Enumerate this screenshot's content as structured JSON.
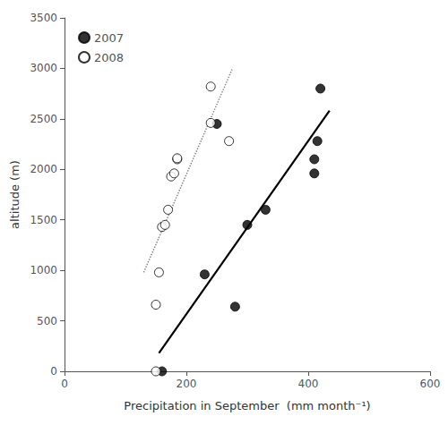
{
  "chart_data": {
    "type": "scatter",
    "xlabel": "Precipitation in September  (mm month⁻¹)",
    "ylabel": "altitude (m)",
    "xlim": [
      0,
      600
    ],
    "ylim": [
      0,
      3500
    ],
    "xticks": [
      0,
      200,
      400,
      600
    ],
    "yticks": [
      0,
      500,
      1000,
      1500,
      2000,
      2500,
      3000,
      3500
    ],
    "grid": false,
    "legend": "upper left",
    "series": [
      {
        "name": "2007",
        "type": "scatter",
        "marker": "circle",
        "color": "black",
        "x": [
          160,
          230,
          280,
          250,
          300,
          330,
          420,
          410,
          410,
          415
        ],
        "values": [
          0,
          960,
          640,
          2450,
          1450,
          1600,
          2800,
          1960,
          2100,
          2280
        ]
      },
      {
        "name": "2008",
        "type": "scatter",
        "marker": "open circle",
        "color": "black",
        "x": [
          150,
          150,
          155,
          160,
          165,
          170,
          175,
          180,
          185,
          185,
          240,
          240,
          270
        ],
        "values": [
          0,
          660,
          980,
          1430,
          1450,
          1600,
          1930,
          1960,
          2100,
          2110,
          2460,
          2820,
          2280
        ]
      },
      {
        "type": "line",
        "line_style": "dotted",
        "color": "#888888",
        "x": [
          130,
          275
        ],
        "values": [
          980.0,
          2989.7
        ]
      },
      {
        "type": "line",
        "line_style": "solid",
        "color": "black",
        "x": [
          155,
          435
        ],
        "values": [
          181.55,
          2581.15
        ]
      }
    ]
  }
}
